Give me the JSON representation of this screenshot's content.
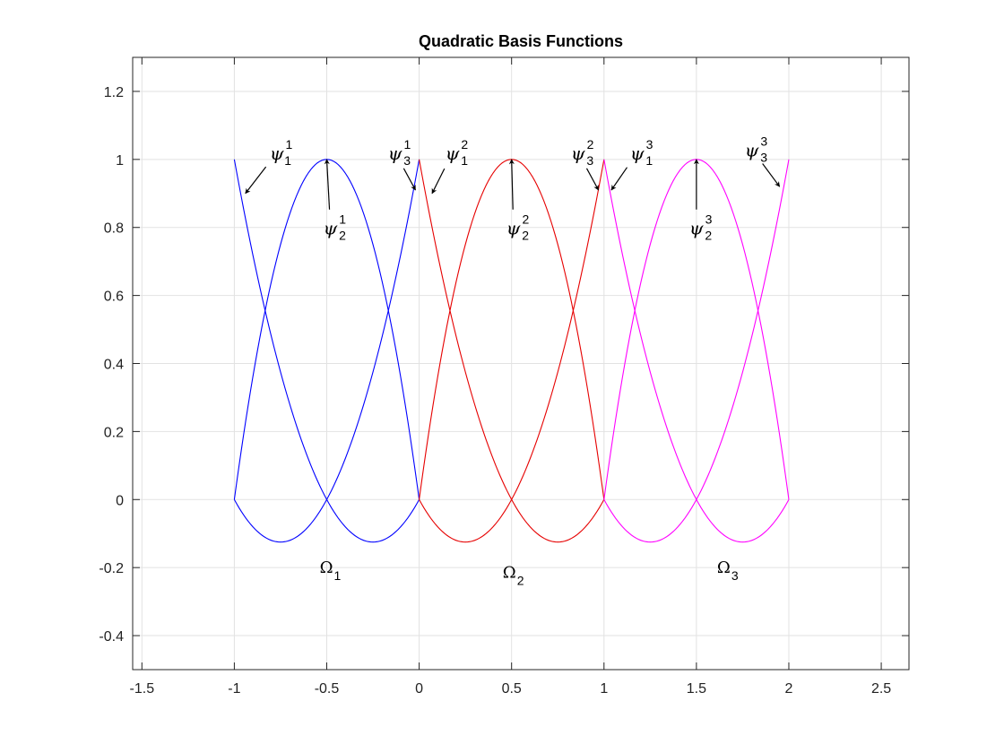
{
  "chart_data": {
    "type": "line",
    "title": "Quadratic Basis Functions",
    "xlabel": "",
    "ylabel": "",
    "xlim": [
      -1.55,
      2.65
    ],
    "ylim": [
      -0.5,
      1.3
    ],
    "xticks": [
      -1.5,
      -1,
      -0.5,
      0,
      0.5,
      1,
      1.5,
      2,
      2.5
    ],
    "xtick_labels": [
      "-1.5",
      "-1",
      "-0.5",
      "0",
      "0.5",
      "1",
      "1.5",
      "2",
      "2.5"
    ],
    "yticks": [
      -0.4,
      -0.2,
      0,
      0.2,
      0.4,
      0.6,
      0.8,
      1,
      1.2
    ],
    "ytick_labels": [
      "-0.4",
      "-0.2",
      "0",
      "0.2",
      "0.4",
      "0.6",
      "0.8",
      "1",
      "1.2"
    ],
    "grid": true,
    "colors": {
      "element1": "#0000ff",
      "element2": "#e60000",
      "element3": "#ff00ff",
      "grid": "#e2e2e2",
      "axes": "#262626"
    },
    "elements": [
      {
        "domain": [
          -1,
          0
        ],
        "color_key": "element1",
        "series": [
          {
            "function": "psi_1",
            "x": [
              -1,
              -0.75,
              -0.5,
              -0.25,
              0
            ],
            "y": [
              1,
              0.375,
              0,
              -0.125,
              0
            ]
          },
          {
            "function": "psi_2",
            "x": [
              -1,
              -0.75,
              -0.5,
              -0.25,
              0
            ],
            "y": [
              0,
              0.75,
              1,
              0.75,
              0
            ]
          },
          {
            "function": "psi_3",
            "x": [
              -1,
              -0.75,
              -0.5,
              -0.25,
              0
            ],
            "y": [
              0,
              -0.125,
              0,
              0.375,
              1
            ]
          }
        ]
      },
      {
        "domain": [
          0,
          1
        ],
        "color_key": "element2",
        "series": [
          {
            "function": "psi_1",
            "x": [
              0,
              0.25,
              0.5,
              0.75,
              1
            ],
            "y": [
              1,
              0.375,
              0,
              -0.125,
              0
            ]
          },
          {
            "function": "psi_2",
            "x": [
              0,
              0.25,
              0.5,
              0.75,
              1
            ],
            "y": [
              0,
              0.75,
              1,
              0.75,
              0
            ]
          },
          {
            "function": "psi_3",
            "x": [
              0,
              0.25,
              0.5,
              0.75,
              1
            ],
            "y": [
              0,
              -0.125,
              0,
              0.375,
              1
            ]
          }
        ]
      },
      {
        "domain": [
          1,
          2
        ],
        "color_key": "element3",
        "series": [
          {
            "function": "psi_1",
            "x": [
              1,
              1.25,
              1.5,
              1.75,
              2
            ],
            "y": [
              1,
              0.375,
              0,
              -0.125,
              0
            ]
          },
          {
            "function": "psi_2",
            "x": [
              1,
              1.25,
              1.5,
              1.75,
              2
            ],
            "y": [
              0,
              0.75,
              1,
              0.75,
              0
            ]
          },
          {
            "function": "psi_3",
            "x": [
              1,
              1.25,
              1.5,
              1.75,
              2
            ],
            "y": [
              0,
              -0.125,
              0,
              0.375,
              1
            ]
          }
        ]
      }
    ],
    "annotations": [
      {
        "base": "ψ",
        "sub": "1",
        "sup": "1",
        "text_x": -0.77,
        "text_y": 1.02,
        "tip_x": -0.94,
        "tip_y": 0.9
      },
      {
        "base": "ψ",
        "sub": "2",
        "sup": "1",
        "text_x": -0.48,
        "text_y": 0.8,
        "tip_x": -0.5,
        "tip_y": 1.0
      },
      {
        "base": "ψ",
        "sub": "3",
        "sup": "1",
        "text_x": -0.13,
        "text_y": 1.02,
        "tip_x": -0.02,
        "tip_y": 0.91
      },
      {
        "base": "ψ",
        "sub": "1",
        "sup": "2",
        "text_x": 0.18,
        "text_y": 1.02,
        "tip_x": 0.07,
        "tip_y": 0.9
      },
      {
        "base": "ψ",
        "sub": "2",
        "sup": "2",
        "text_x": 0.51,
        "text_y": 0.8,
        "tip_x": 0.5,
        "tip_y": 1.0
      },
      {
        "base": "ψ",
        "sub": "3",
        "sup": "2",
        "text_x": 0.86,
        "text_y": 1.02,
        "tip_x": 0.97,
        "tip_y": 0.91
      },
      {
        "base": "ψ",
        "sub": "1",
        "sup": "3",
        "text_x": 1.18,
        "text_y": 1.02,
        "tip_x": 1.04,
        "tip_y": 0.91
      },
      {
        "base": "ψ",
        "sub": "2",
        "sup": "3",
        "text_x": 1.5,
        "text_y": 0.8,
        "tip_x": 1.5,
        "tip_y": 1.0
      },
      {
        "base": "ψ",
        "sub": "3",
        "sup": "3",
        "text_x": 1.8,
        "text_y": 1.03,
        "tip_x": 1.95,
        "tip_y": 0.92
      }
    ],
    "domain_labels": [
      {
        "base": "Ω",
        "sub": "1",
        "x": -0.48,
        "y": -0.215
      },
      {
        "base": "Ω",
        "sub": "2",
        "x": 0.51,
        "y": -0.23
      },
      {
        "base": "Ω",
        "sub": "3",
        "x": 1.67,
        "y": -0.215
      }
    ]
  }
}
